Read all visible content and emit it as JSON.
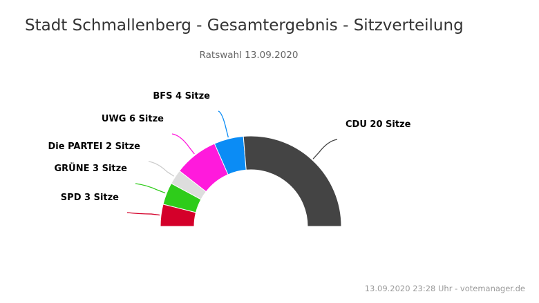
{
  "chart_data": {
    "type": "pie",
    "variant": "parliament-semicircle",
    "title": "Stadt Schmallenberg - Gesamtergebnis - Sitzverteilung",
    "subtitle": "Ratswahl 13.09.2020",
    "credit": "13.09.2020 23:28 Uhr - votemanager.de",
    "series": [
      {
        "name": "SPD",
        "label": "SPD 3 Sitze",
        "value": 3,
        "color": "#d4002a"
      },
      {
        "name": "GRÜNE",
        "label": "GRÜNE 3 Sitze",
        "value": 3,
        "color": "#2ecc1a"
      },
      {
        "name": "Die PARTEI",
        "label": "Die PARTEI 2 Sitze",
        "value": 2,
        "color": "#dddddd"
      },
      {
        "name": "UWG",
        "label": "UWG 6 Sitze",
        "value": 6,
        "color": "#ff1adc"
      },
      {
        "name": "BFS",
        "label": "BFS 4 Sitze",
        "value": 4,
        "color": "#0b8cf5"
      },
      {
        "name": "CDU",
        "label": "CDU 20 Sitze",
        "value": 20,
        "color": "#444444"
      }
    ]
  }
}
